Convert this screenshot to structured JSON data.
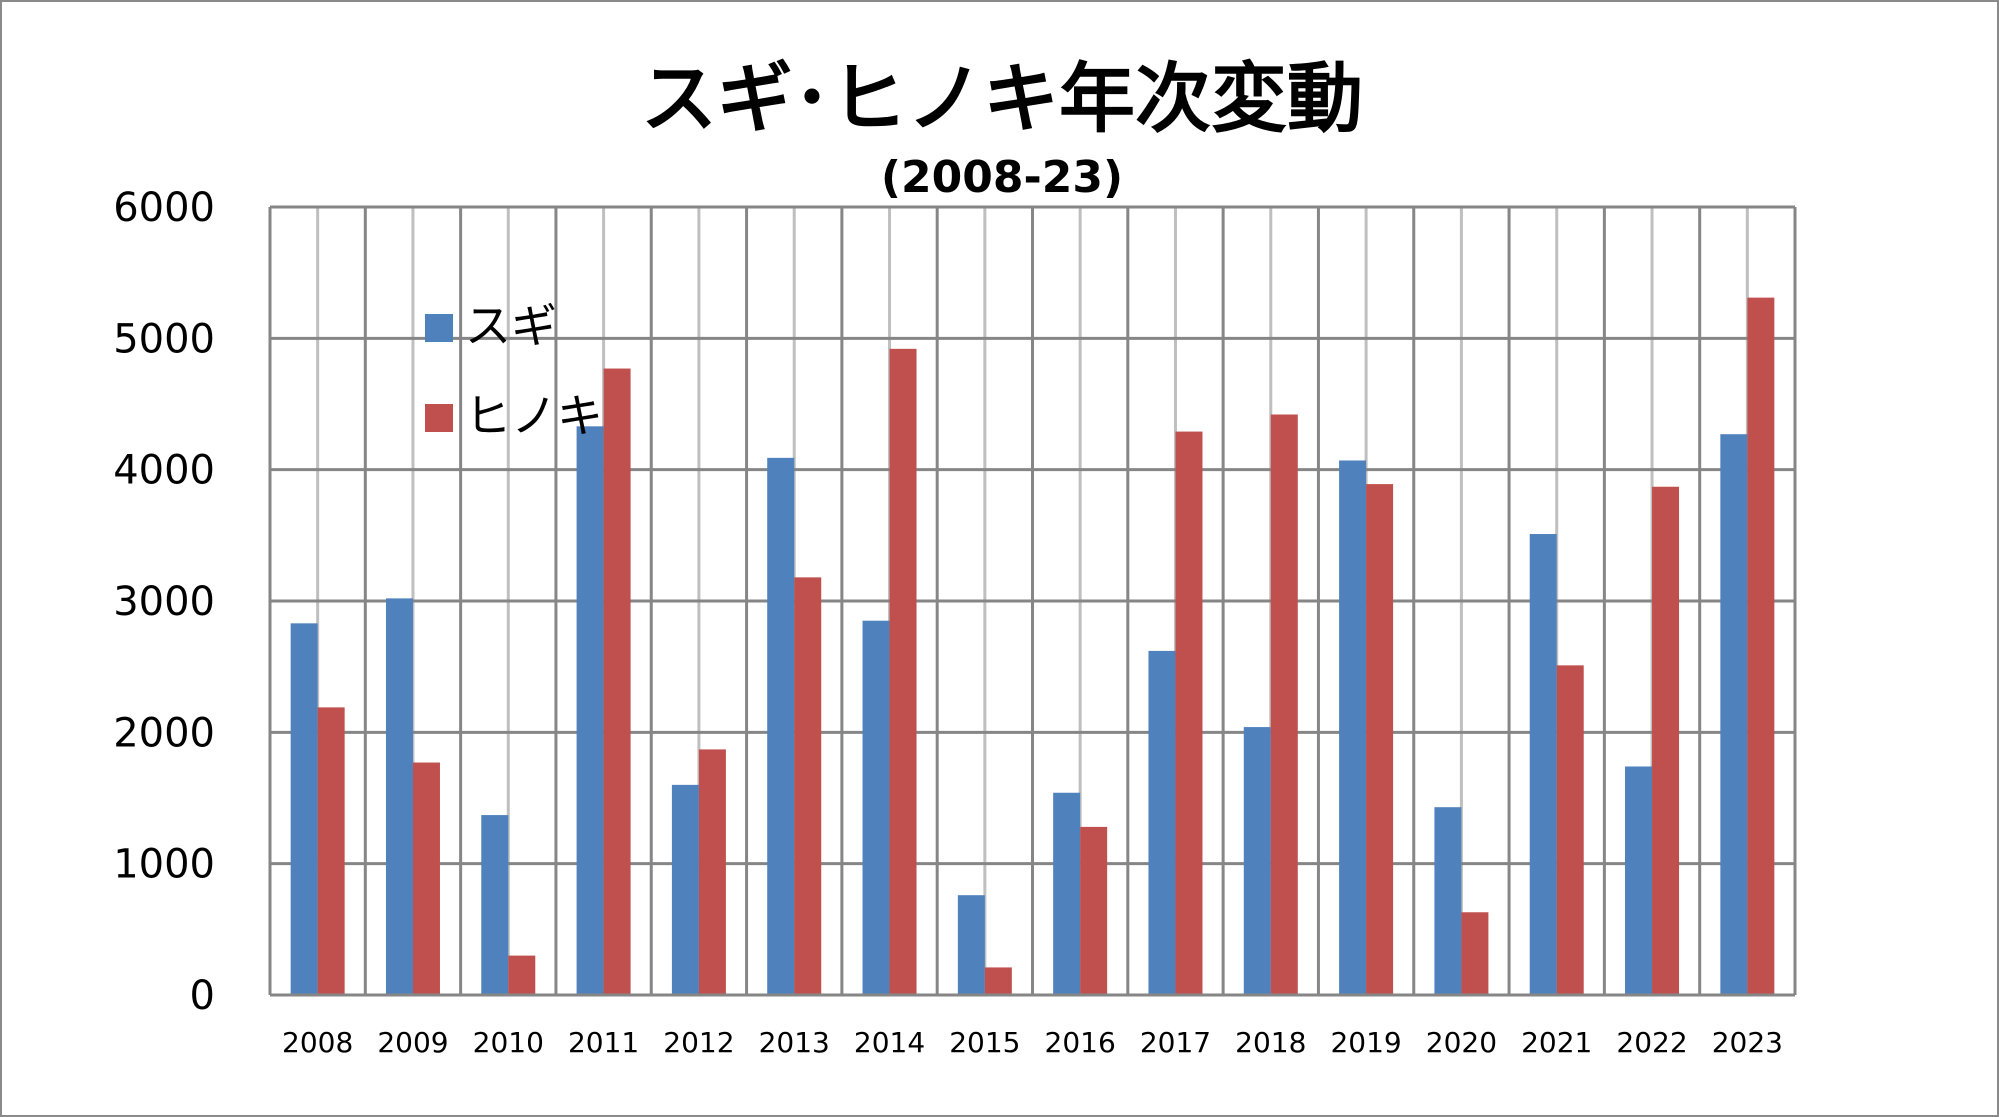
{
  "chart_data": {
    "type": "bar",
    "title": "スギ･ヒノキ年次変動",
    "subtitle": "(2008-23)",
    "xlabel": "",
    "ylabel": "",
    "categories": [
      "2008",
      "2009",
      "2010",
      "2011",
      "2012",
      "2013",
      "2014",
      "2015",
      "2016",
      "2017",
      "2018",
      "2019",
      "2020",
      "2021",
      "2022",
      "2023"
    ],
    "series": [
      {
        "name": "スギ",
        "color": "#4f81bd",
        "values": [
          2830,
          3020,
          1370,
          4330,
          1600,
          4090,
          2850,
          760,
          1540,
          2620,
          2040,
          4070,
          1430,
          3510,
          1740,
          4270
        ]
      },
      {
        "name": "ヒノキ",
        "color": "#c0504d",
        "values": [
          2190,
          1770,
          300,
          4770,
          1870,
          3180,
          4920,
          210,
          1280,
          4290,
          4420,
          3890,
          630,
          2510,
          3870,
          5310
        ]
      }
    ],
    "ylim": [
      0,
      6000
    ],
    "yticks": [
      0,
      1000,
      2000,
      3000,
      4000,
      5000,
      6000
    ],
    "grid": true,
    "legend_position": "top-left"
  }
}
